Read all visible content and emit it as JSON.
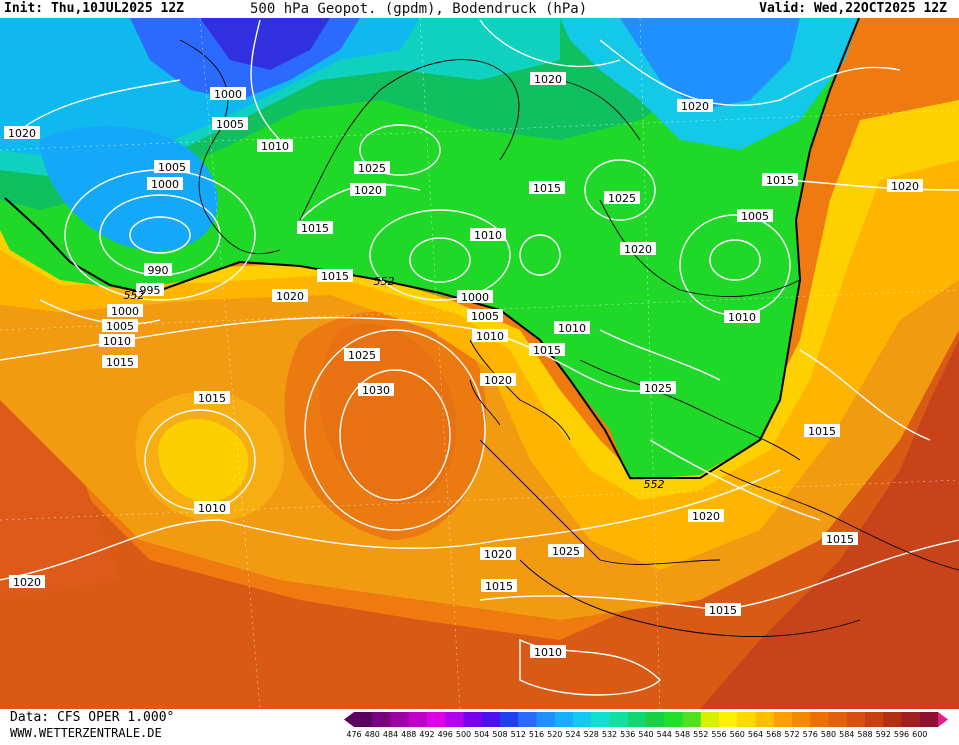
{
  "header": {
    "init": "Init: Thu,10JUL2025 12Z",
    "title": "500 hPa Geopot. (gpdm), Bodendruck (hPa)",
    "valid": "Valid: Wed,22OCT2025 12Z"
  },
  "footer": {
    "data_source": "Data: CFS OPER 1.000°",
    "website": "WWW.WETTERZENTRALE.DE"
  },
  "legend": {
    "values": [
      "476",
      "480",
      "484",
      "488",
      "492",
      "496",
      "500",
      "504",
      "508",
      "512",
      "516",
      "520",
      "524",
      "528",
      "532",
      "536",
      "540",
      "544",
      "548",
      "552",
      "556",
      "560",
      "564",
      "568",
      "572",
      "576",
      "580",
      "584",
      "588",
      "592",
      "596",
      "600"
    ],
    "colors": [
      "#5a0060",
      "#7a0080",
      "#9a00a6",
      "#c000c8",
      "#e000e8",
      "#b400f0",
      "#7a00f0",
      "#4a10f0",
      "#2040f0",
      "#2a6aff",
      "#1e90ff",
      "#14b0ff",
      "#10c8f0",
      "#0ee0d0",
      "#10e0a0",
      "#10d870",
      "#18d040",
      "#20e028",
      "#50e020",
      "#d8f000",
      "#fff000",
      "#ffd800",
      "#ffbe00",
      "#ffa000",
      "#f28a00",
      "#ec7000",
      "#e06010",
      "#d85010",
      "#c84010",
      "#b03010",
      "#a02020",
      "#901030"
    ]
  },
  "isobar_labels": [
    {
      "text": "1000"
    },
    {
      "text": "1005"
    },
    {
      "text": "1010"
    },
    {
      "text": "1020"
    },
    {
      "text": "1005"
    },
    {
      "text": "1000"
    },
    {
      "text": "990"
    },
    {
      "text": "995"
    },
    {
      "text": "1000"
    },
    {
      "text": "1005"
    },
    {
      "text": "1010"
    },
    {
      "text": "1015"
    },
    {
      "text": "1025"
    },
    {
      "text": "1020"
    },
    {
      "text": "1015"
    },
    {
      "text": "1020"
    },
    {
      "text": "1010"
    },
    {
      "text": "1015"
    },
    {
      "text": "1000"
    },
    {
      "text": "1005"
    },
    {
      "text": "1010"
    },
    {
      "text": "1015"
    },
    {
      "text": "1020"
    },
    {
      "text": "1020"
    },
    {
      "text": "1015"
    },
    {
      "text": "1025"
    },
    {
      "text": "1020"
    },
    {
      "text": "1010"
    },
    {
      "text": "1020"
    },
    {
      "text": "1005"
    },
    {
      "text": "1015"
    },
    {
      "text": "1020"
    },
    {
      "text": "1010"
    },
    {
      "text": "1025"
    },
    {
      "text": "1015"
    },
    {
      "text": "1020"
    },
    {
      "text": "1025"
    },
    {
      "text": "1030"
    },
    {
      "text": "1015"
    },
    {
      "text": "1010"
    },
    {
      "text": "1020"
    },
    {
      "text": "1020"
    },
    {
      "text": "1015"
    },
    {
      "text": "1025"
    },
    {
      "text": "1015"
    },
    {
      "text": "1010"
    },
    {
      "text": "1015"
    },
    {
      "text": "1020"
    }
  ],
  "contour_labels": [
    {
      "text": "552"
    },
    {
      "text": "552"
    },
    {
      "text": "552"
    }
  ]
}
